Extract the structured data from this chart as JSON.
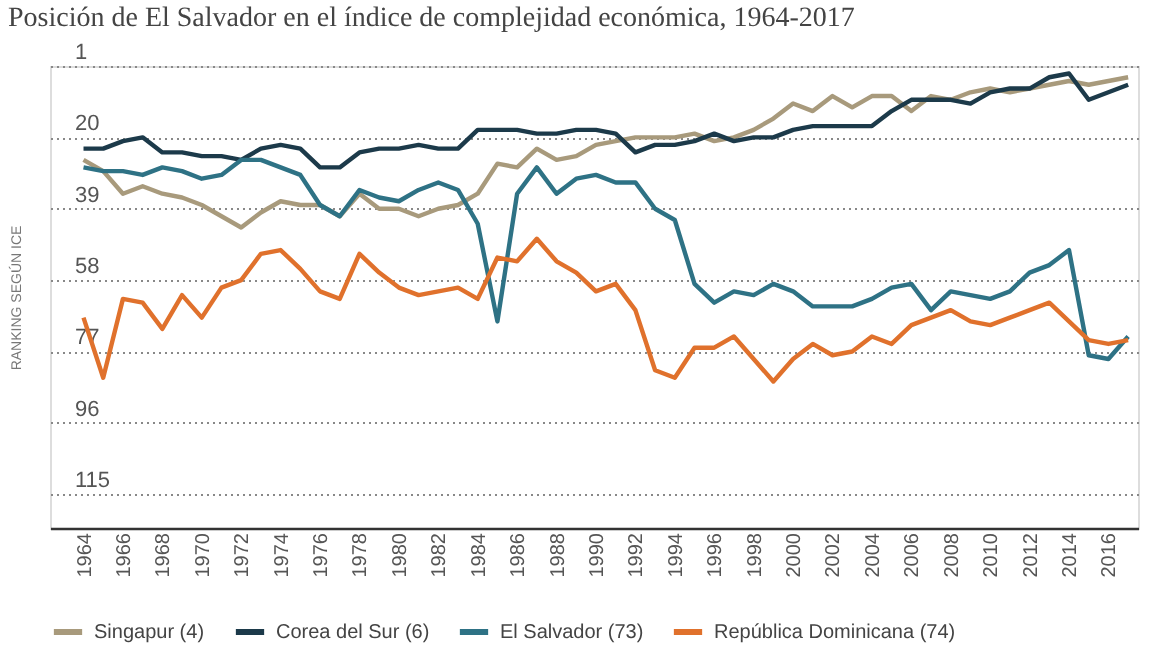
{
  "chart_data": {
    "type": "line",
    "title": "Posición de El Salvador en el índice de complejidad económica, 1964-2017",
    "ylabel": "RANKING SEGÚN ICE",
    "x": [
      1964,
      1965,
      1966,
      1967,
      1968,
      1969,
      1970,
      1971,
      1972,
      1973,
      1974,
      1975,
      1976,
      1977,
      1978,
      1979,
      1980,
      1981,
      1982,
      1983,
      1984,
      1985,
      1986,
      1987,
      1988,
      1989,
      1990,
      1991,
      1992,
      1993,
      1994,
      1995,
      1996,
      1997,
      1998,
      1999,
      2000,
      2001,
      2002,
      2003,
      2004,
      2005,
      2006,
      2007,
      2008,
      2009,
      2010,
      2011,
      2012,
      2013,
      2014,
      2015,
      2016,
      2017
    ],
    "series": [
      {
        "name": "Singapur (4)",
        "color": "#a89a7c",
        "values": [
          26,
          29,
          35,
          33,
          35,
          36,
          38,
          41,
          44,
          40,
          37,
          38,
          38,
          41,
          35,
          39,
          39,
          41,
          39,
          38,
          35,
          27,
          28,
          23,
          26,
          25,
          22,
          21,
          20,
          20,
          20,
          19,
          21,
          20,
          18,
          15,
          11,
          13,
          9,
          12,
          9,
          9,
          13,
          9,
          10,
          8,
          7,
          8,
          7,
          6,
          5,
          6,
          5,
          4
        ]
      },
      {
        "name": "Corea del Sur (6)",
        "color": "#1c3a4a",
        "values": [
          23,
          23,
          21,
          20,
          24,
          24,
          25,
          25,
          26,
          23,
          22,
          23,
          28,
          28,
          24,
          23,
          23,
          22,
          23,
          23,
          18,
          18,
          18,
          19,
          19,
          18,
          18,
          19,
          24,
          22,
          22,
          21,
          19,
          21,
          20,
          20,
          18,
          17,
          17,
          17,
          17,
          13,
          10,
          10,
          10,
          11,
          8,
          7,
          7,
          4,
          3,
          10,
          8,
          6
        ]
      },
      {
        "name": "El Salvador (73)",
        "color": "#2e7285",
        "values": [
          28,
          29,
          29,
          30,
          28,
          29,
          31,
          30,
          26,
          26,
          28,
          30,
          38,
          41,
          34,
          36,
          37,
          34,
          32,
          34,
          43,
          69,
          35,
          28,
          35,
          31,
          30,
          32,
          32,
          39,
          42,
          59,
          64,
          61,
          62,
          59,
          61,
          65,
          65,
          65,
          63,
          60,
          59,
          66,
          61,
          62,
          63,
          61,
          56,
          54,
          50,
          78,
          79,
          73
        ]
      },
      {
        "name": "República Dominicana (74)",
        "color": "#e0712c",
        "values": [
          68,
          84,
          63,
          64,
          71,
          62,
          68,
          60,
          58,
          51,
          50,
          55,
          61,
          63,
          51,
          56,
          60,
          62,
          61,
          60,
          63,
          52,
          53,
          47,
          53,
          56,
          61,
          59,
          66,
          82,
          84,
          76,
          76,
          73,
          79,
          85,
          79,
          75,
          78,
          77,
          73,
          75,
          70,
          68,
          66,
          69,
          70,
          68,
          66,
          64,
          69,
          74,
          75,
          74
        ]
      }
    ],
    "ylim": [
      124,
      1
    ],
    "yticks": [
      1,
      20,
      39,
      58,
      77,
      96,
      115
    ],
    "xlim": [
      1962.3,
      2017.5
    ],
    "xticks": [
      1964,
      1966,
      1968,
      1970,
      1972,
      1974,
      1976,
      1978,
      1980,
      1982,
      1984,
      1986,
      1988,
      1990,
      1992,
      1994,
      1996,
      1998,
      2000,
      2002,
      2004,
      2006,
      2008,
      2010,
      2012,
      2014,
      2016
    ],
    "grid": "y",
    "legend": "bottom",
    "marker": "none",
    "line_style": "solid"
  }
}
